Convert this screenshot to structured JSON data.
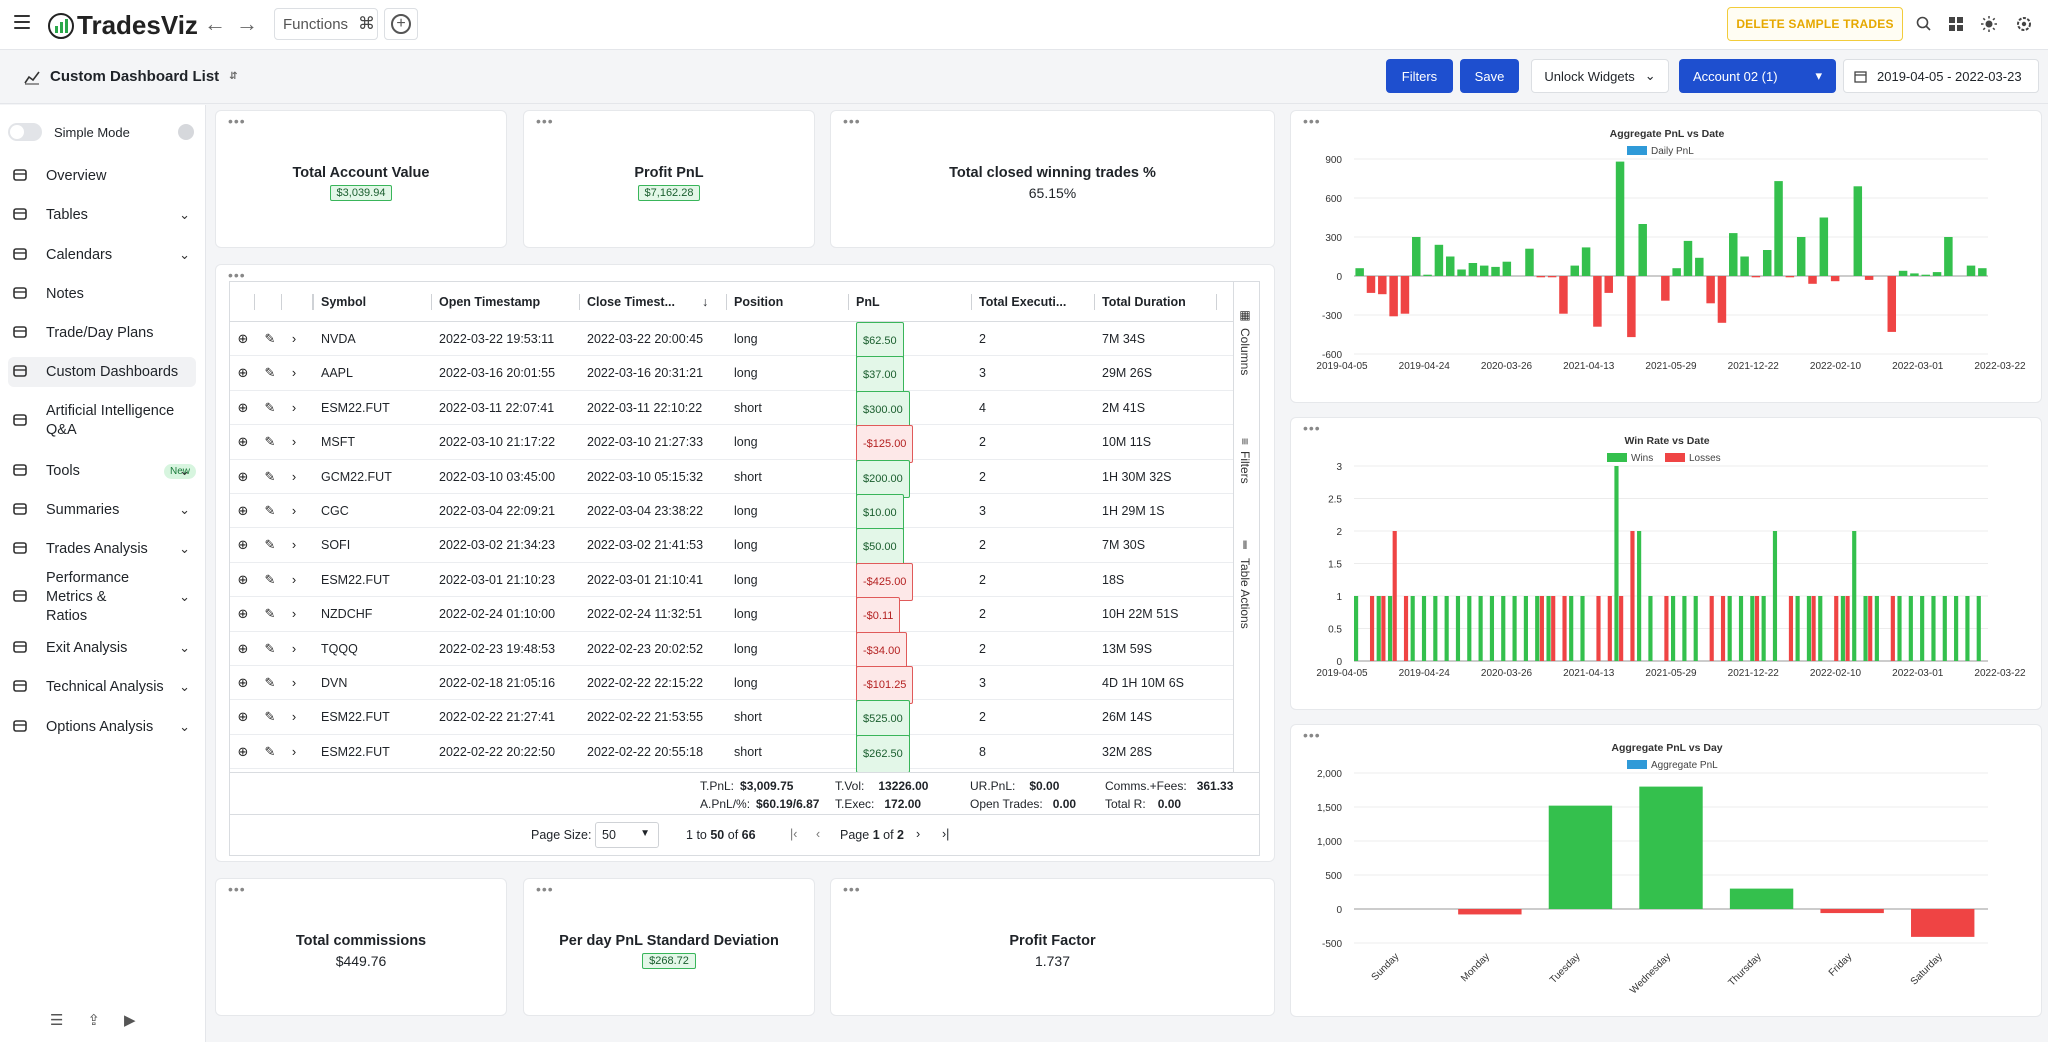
{
  "app": {
    "name": "TradesViz",
    "functions_label": "Functions",
    "cmd_glyph": "⌘",
    "delete_label": "DELETE SAMPLE TRADES"
  },
  "toolbar": {
    "dashboard_list": "Custom Dashboard List",
    "filters": "Filters",
    "save": "Save",
    "unlock": "Unlock Widgets",
    "account": "Account 02 (1)",
    "date_range": "2019-04-05 - 2022-03-23"
  },
  "sidebar": {
    "simple_mode": "Simple Mode",
    "new_badge": "New",
    "items": [
      {
        "label": "Overview",
        "icon": "pie-chart-icon"
      },
      {
        "label": "Tables",
        "icon": "table-icon"
      },
      {
        "label": "Calendars",
        "icon": "calendar-icon"
      },
      {
        "label": "Notes",
        "icon": "notes-icon"
      },
      {
        "label": "Trade/Day Plans",
        "icon": "clipboard-icon"
      },
      {
        "label": "Custom Dashboards",
        "icon": "dashboard-icon"
      },
      {
        "label": "Artificial Intelligence Q&A",
        "icon": "ai-icon"
      },
      {
        "label": "Tools",
        "icon": "gear-icon"
      },
      {
        "label": "Summaries",
        "icon": "summary-icon"
      },
      {
        "label": "Trades Analysis",
        "icon": "analysis-icon"
      },
      {
        "label": "Performance Metrics & Ratios",
        "icon": "performance-icon"
      },
      {
        "label": "Exit Analysis",
        "icon": "exit-icon"
      },
      {
        "label": "Technical Analysis",
        "icon": "technical-icon"
      },
      {
        "label": "Options Analysis",
        "icon": "options-icon"
      }
    ]
  },
  "kpis": {
    "account_value": {
      "title": "Total Account Value",
      "value": "$3,039.94"
    },
    "profit": {
      "title": "Profit PnL",
      "value": "$7,162.28"
    },
    "win_pct": {
      "title": "Total closed winning trades %",
      "value": "65.15%"
    },
    "commissions": {
      "title": "Total commissions",
      "value": "$449.76"
    },
    "std": {
      "title": "Per day PnL Standard Deviation",
      "value": "$268.72"
    },
    "profit_factor": {
      "title": "Profit Factor",
      "value": "1.737"
    }
  },
  "table": {
    "headers": [
      "Symbol",
      "Open Timestamp",
      "Close Timest...",
      "Position",
      "PnL",
      "Total Executi...",
      "Total Duration"
    ],
    "rows": [
      {
        "symbol": "NVDA",
        "open": "2022-03-22 19:53:11",
        "close": "2022-03-22 20:00:45",
        "position": "long",
        "pnl": "$62.50",
        "neg": false,
        "exec": "2",
        "duration": "7M 34S"
      },
      {
        "symbol": "AAPL",
        "open": "2022-03-16 20:01:55",
        "close": "2022-03-16 20:31:21",
        "position": "long",
        "pnl": "$37.00",
        "neg": false,
        "exec": "3",
        "duration": "29M 26S"
      },
      {
        "symbol": "ESM22.FUT",
        "open": "2022-03-11 22:07:41",
        "close": "2022-03-11 22:10:22",
        "position": "short",
        "pnl": "$300.00",
        "neg": false,
        "exec": "4",
        "duration": "2M 41S"
      },
      {
        "symbol": "MSFT",
        "open": "2022-03-10 21:17:22",
        "close": "2022-03-10 21:27:33",
        "position": "long",
        "pnl": "-$125.00",
        "neg": true,
        "exec": "2",
        "duration": "10M 11S"
      },
      {
        "symbol": "GCM22.FUT",
        "open": "2022-03-10 03:45:00",
        "close": "2022-03-10 05:15:32",
        "position": "short",
        "pnl": "$200.00",
        "neg": false,
        "exec": "2",
        "duration": "1H 30M 32S"
      },
      {
        "symbol": "CGC",
        "open": "2022-03-04 22:09:21",
        "close": "2022-03-04 23:38:22",
        "position": "long",
        "pnl": "$10.00",
        "neg": false,
        "exec": "3",
        "duration": "1H 29M 1S"
      },
      {
        "symbol": "SOFI",
        "open": "2022-03-02 21:34:23",
        "close": "2022-03-02 21:41:53",
        "position": "long",
        "pnl": "$50.00",
        "neg": false,
        "exec": "2",
        "duration": "7M 30S"
      },
      {
        "symbol": "ESM22.FUT",
        "open": "2022-03-01 21:10:23",
        "close": "2022-03-01 21:10:41",
        "position": "long",
        "pnl": "-$425.00",
        "neg": true,
        "exec": "2",
        "duration": "18S"
      },
      {
        "symbol": "NZDCHF",
        "open": "2022-02-24 01:10:00",
        "close": "2022-02-24 11:32:51",
        "position": "long",
        "pnl": "-$0.11",
        "neg": true,
        "exec": "2",
        "duration": "10H 22M 51S"
      },
      {
        "symbol": "TQQQ",
        "open": "2022-02-23 19:48:53",
        "close": "2022-02-23 20:02:52",
        "position": "long",
        "pnl": "-$34.00",
        "neg": true,
        "exec": "2",
        "duration": "13M 59S"
      },
      {
        "symbol": "DVN",
        "open": "2022-02-18 21:05:16",
        "close": "2022-02-22 22:15:22",
        "position": "long",
        "pnl": "-$101.25",
        "neg": true,
        "exec": "3",
        "duration": "4D 1H 10M 6S"
      },
      {
        "symbol": "ESM22.FUT",
        "open": "2022-02-22 21:27:41",
        "close": "2022-02-22 21:53:55",
        "position": "short",
        "pnl": "$525.00",
        "neg": false,
        "exec": "2",
        "duration": "26M 14S"
      },
      {
        "symbol": "ESM22.FUT",
        "open": "2022-02-22 20:22:50",
        "close": "2022-02-22 20:55:18",
        "position": "short",
        "pnl": "$262.50",
        "neg": false,
        "exec": "8",
        "duration": "32M 28S"
      }
    ],
    "side_tabs": [
      "Columns",
      "Filters",
      "Table Actions"
    ],
    "summary": {
      "tpnl_l": "T.PnL:",
      "tpnl": "$3,009.75",
      "apnl_l": "A.PnL/%:",
      "apnl": "$60.19/6.87",
      "tvol_l": "T.Vol:",
      "tvol": "13226.00",
      "texec_l": "T.Exec:",
      "texec": "172.00",
      "urpnl_l": "UR.PnL:",
      "urpnl": "$0.00",
      "open_l": "Open Trades:",
      "open": "0.00",
      "comm_l": "Comms.+Fees:",
      "comm": "361.33",
      "totr_l": "Total R:",
      "totr": "0.00"
    },
    "pager": {
      "page_size_label": "Page Size:",
      "page_size": "50",
      "from": "1",
      "to_word": "to",
      "to": "50",
      "of_word": "of",
      "total": "66",
      "page_word": "Page",
      "page": "1",
      "page_of": "of",
      "pages": "2"
    }
  },
  "chart_data": [
    {
      "type": "bar",
      "title": "Aggregate PnL vs Date",
      "legend": [
        "Daily PnL"
      ],
      "ylim": [
        -600,
        900
      ],
      "yticks": [
        900,
        600,
        300,
        0,
        -300,
        -600
      ],
      "xticks": [
        "2019-04-05",
        "2019-04-24",
        "2020-03-26",
        "2021-04-13",
        "2021-05-29",
        "2021-12-22",
        "2022-02-10",
        "2022-03-01",
        "2022-03-22"
      ],
      "values": [
        60,
        -130,
        -140,
        -310,
        -290,
        300,
        10,
        240,
        150,
        50,
        100,
        80,
        70,
        110,
        0,
        210,
        -10,
        -10,
        -290,
        80,
        220,
        -390,
        -130,
        880,
        -470,
        400,
        0,
        -190,
        60,
        270,
        140,
        -210,
        -360,
        330,
        150,
        -10,
        200,
        730,
        -10,
        300,
        -60,
        450,
        -40,
        0,
        690,
        -30,
        0,
        -430,
        40,
        20,
        10,
        30,
        300,
        0,
        80,
        60
      ]
    },
    {
      "type": "bar",
      "title": "Win Rate vs Date",
      "legend": [
        "Wins",
        "Losses"
      ],
      "ylim": [
        0,
        3
      ],
      "yticks": [
        3,
        2.5,
        2,
        1.5,
        1,
        0.5,
        0
      ],
      "xticks": [
        "2019-04-05",
        "2019-04-24",
        "2020-03-26",
        "2021-04-13",
        "2021-05-29",
        "2021-12-22",
        "2022-02-10",
        "2022-03-01",
        "2022-03-22"
      ],
      "series": [
        {
          "name": "Wins",
          "values": [
            1,
            0,
            1,
            1,
            0,
            1,
            1,
            1,
            1,
            1,
            1,
            1,
            1,
            1,
            1,
            1,
            1,
            1,
            0,
            1,
            1,
            0,
            0,
            3,
            0,
            2,
            1,
            0,
            1,
            1,
            1,
            0,
            0,
            1,
            1,
            1,
            1,
            2,
            0,
            1,
            1,
            1,
            0,
            1,
            2,
            1,
            1,
            0,
            1,
            1,
            1,
            1,
            1,
            1,
            1,
            1
          ]
        },
        {
          "name": "Losses",
          "values": [
            0,
            1,
            1,
            2,
            1,
            0,
            0,
            0,
            0,
            0,
            0,
            0,
            0,
            0,
            0,
            0,
            1,
            1,
            1,
            0,
            0,
            1,
            1,
            1,
            2,
            0,
            0,
            1,
            0,
            0,
            0,
            1,
            1,
            0,
            0,
            1,
            0,
            0,
            1,
            0,
            1,
            0,
            1,
            1,
            0,
            1,
            0,
            1,
            0,
            0,
            0,
            0,
            0,
            0,
            0,
            0
          ]
        }
      ]
    },
    {
      "type": "bar",
      "title": "Aggregate PnL vs Day",
      "legend": [
        "Aggregate PnL"
      ],
      "ylim": [
        -500,
        2000
      ],
      "yticks": [
        2000,
        1500,
        1000,
        500,
        0,
        -500
      ],
      "categories": [
        "Sunday",
        "Monday",
        "Tuesday",
        "Wednesday",
        "Thursday",
        "Friday",
        "Saturday"
      ],
      "values": [
        0,
        -80,
        1520,
        1800,
        300,
        -60,
        -410
      ]
    }
  ],
  "colors": {
    "green": "#34c04d",
    "red": "#ef4444",
    "blue": "#2f9ad8",
    "accent": "#1e4fcf"
  }
}
